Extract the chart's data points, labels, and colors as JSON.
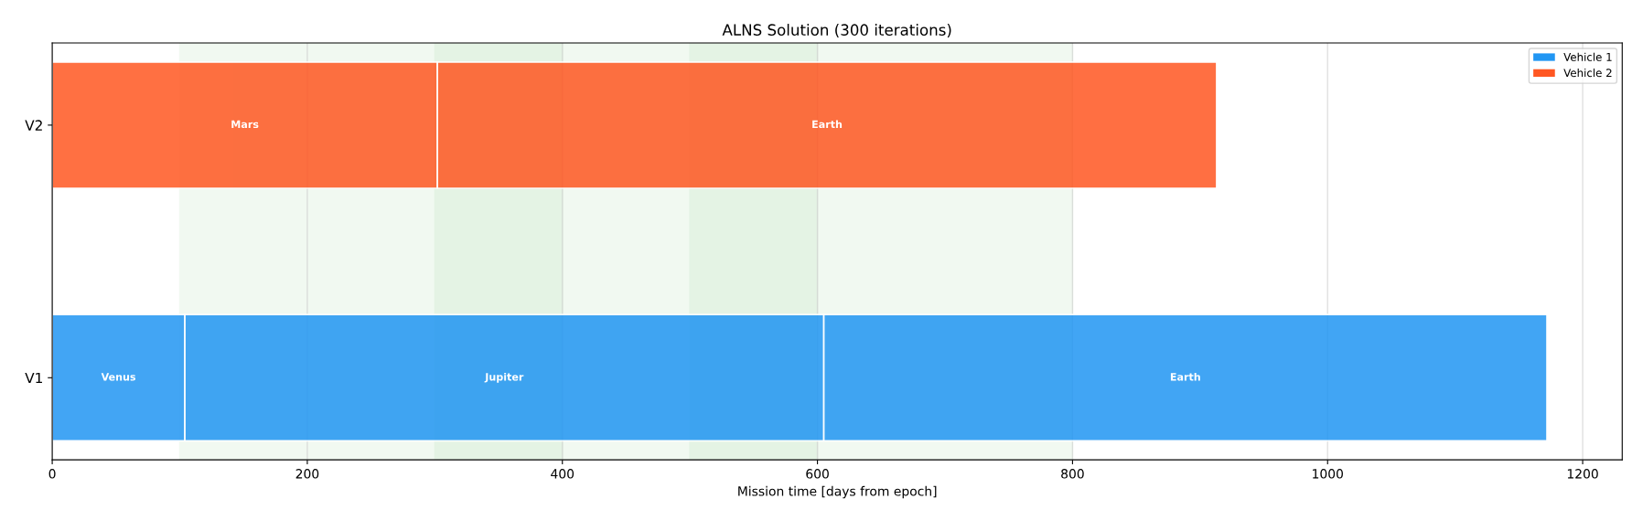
{
  "chart_data": {
    "type": "bar",
    "orientation": "horizontal",
    "title": "ALNS Solution (300 iterations)",
    "xlabel": "Mission time [days from epoch]",
    "categories": [
      "V2",
      "V1"
    ],
    "series": [
      {
        "name": "Vehicle 1",
        "color": "#2196f3",
        "base": [
          null,
          0
        ],
        "values": [
          null,
          104
        ],
        "value_labels": [
          null,
          "Venus"
        ]
      },
      {
        "color": "#2196f3",
        "base": [
          null,
          104
        ],
        "values": [
          null,
          501
        ],
        "value_labels": [
          null,
          "Jupiter"
        ]
      },
      {
        "color": "#2196f3",
        "base": [
          null,
          605
        ],
        "values": [
          null,
          567
        ],
        "value_labels": [
          null,
          "Earth"
        ]
      },
      {
        "name": "Vehicle 2",
        "color": "#ff5722",
        "base": [
          0,
          null
        ],
        "values": [
          302,
          null
        ],
        "value_labels": [
          "Mars",
          null
        ]
      },
      {
        "color": "#ff5722",
        "base": [
          302,
          null
        ],
        "values": [
          611,
          null
        ],
        "value_labels": [
          "Earth",
          null
        ]
      }
    ],
    "bands": [
      {
        "axis": "x",
        "from": 100,
        "to": 800,
        "color": "#4caf50"
      },
      {
        "axis": "x",
        "from": 300,
        "to": 400,
        "color": "#4caf50"
      },
      {
        "axis": "x",
        "from": 500,
        "to": 600,
        "color": "#4caf50"
      }
    ],
    "xlim": [
      0,
      1231
    ],
    "xticks": [
      0,
      200,
      400,
      600,
      800,
      1000,
      1200
    ],
    "grid": "x",
    "legend": "top right"
  }
}
